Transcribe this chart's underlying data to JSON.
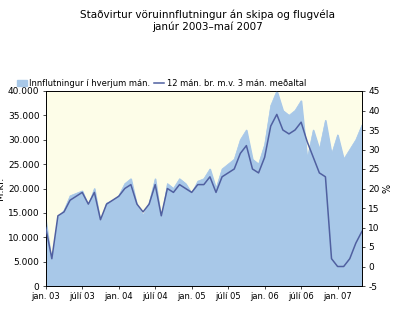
{
  "title": "Staðvirtur vöruinnflutningur án skipa og flugvéla\njanúr 2003–maí 2007",
  "ylabel_left": "M.kr.",
  "ylabel_right": "%",
  "legend_area": "Innflutningur í hverjum mán.",
  "legend_line": "12 mán. br. m.v. 3 mán. meðaltal",
  "background_color": "#FDFDE8",
  "area_color": "#a8c8e8",
  "line_color": "#5060a0",
  "ylim_left": [
    0,
    40000
  ],
  "ylim_right": [
    -5,
    45
  ],
  "yticks_left": [
    0,
    5000,
    10000,
    15000,
    20000,
    25000,
    30000,
    35000,
    40000
  ],
  "yticks_right": [
    -5,
    0,
    5,
    10,
    15,
    20,
    25,
    30,
    35,
    40,
    45
  ],
  "area_values": [
    13500,
    4500,
    14000,
    15500,
    18500,
    19000,
    19500,
    16500,
    20000,
    13000,
    17000,
    17500,
    18500,
    21000,
    22000,
    16500,
    14500,
    17000,
    22000,
    13500,
    21000,
    20000,
    22000,
    21000,
    19000,
    21500,
    22000,
    24000,
    20000,
    24000,
    25000,
    26000,
    30000,
    32000,
    26000,
    25000,
    29000,
    37000,
    40000,
    36000,
    35000,
    36000,
    38000,
    26000,
    32000,
    28000,
    34000,
    27000,
    31000,
    26000,
    28000,
    30000,
    33000
  ],
  "line_values_pct": [
    10,
    2,
    13,
    14,
    17,
    18,
    19,
    16,
    19,
    12,
    16,
    17,
    18,
    20,
    21,
    16,
    14,
    16,
    21,
    13,
    20,
    19,
    21,
    20,
    19,
    21,
    21,
    23,
    19,
    23,
    24,
    25,
    29,
    31,
    25,
    24,
    28,
    36,
    39,
    35,
    34,
    35,
    37,
    32,
    28,
    24,
    23,
    2,
    0,
    0,
    2,
    6,
    9
  ],
  "n_points": 53,
  "xtick_labels": [
    "jan. 03",
    "júlí 03",
    "jan. 04",
    "júlí 04",
    "jan. 05",
    "júlí 05",
    "jan. 06",
    "júlí 06",
    "jan. 07"
  ],
  "xtick_positions": [
    0,
    6,
    12,
    18,
    24,
    30,
    36,
    42,
    48
  ]
}
